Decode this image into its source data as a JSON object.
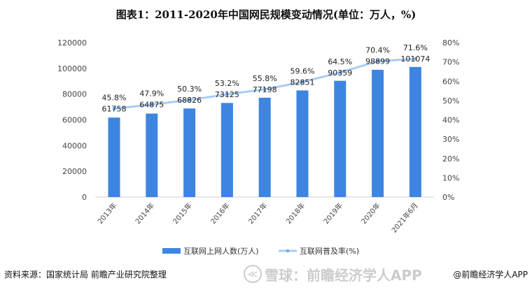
{
  "chart_data": {
    "type": "bar+line",
    "title": "图表1：2011-2020年中国网民规模变动情况(单位：万人，%)",
    "categories": [
      "2013年",
      "2014年",
      "2015年",
      "2016年",
      "2017年",
      "2018年",
      "2019年",
      "2020年",
      "2021年6月"
    ],
    "series": [
      {
        "name": "互联网上网人数(万人)",
        "type": "bar",
        "axis": "left",
        "color": "#3D85E0",
        "values": [
          61758,
          64875,
          68826,
          73125,
          77198,
          82851,
          90359,
          98899,
          101074
        ]
      },
      {
        "name": "互联网普及率(%)",
        "type": "line",
        "axis": "right",
        "color": "#A9CCF5",
        "values": [
          45.8,
          47.9,
          50.3,
          53.2,
          55.8,
          59.6,
          64.5,
          70.4,
          71.6
        ]
      }
    ],
    "left_axis": {
      "ylim": [
        0,
        120000
      ],
      "ticks": [
        "0",
        "20000",
        "40000",
        "60000",
        "80000",
        "100000",
        "120000"
      ]
    },
    "right_axis": {
      "ylim": [
        0,
        80
      ],
      "ticks": [
        "0%",
        "10%",
        "20%",
        "30%",
        "40%",
        "50%",
        "60%",
        "70%",
        "80%"
      ]
    },
    "grid": false,
    "legend": "bottom"
  },
  "footer": {
    "source": "资料来源：国家统计局 前瞻产业研究院整理",
    "watermark": "雪球：前瞻经济学人APP",
    "credit": "@前瞻经济学人APP"
  }
}
